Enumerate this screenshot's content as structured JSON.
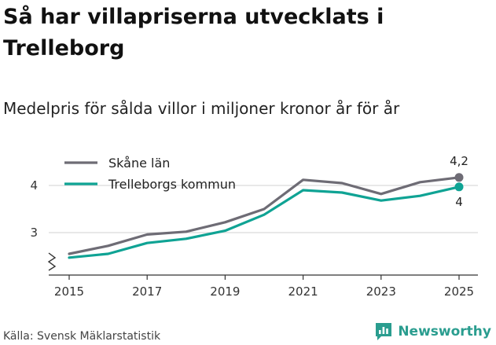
{
  "header": {
    "title": "Så har villapriserna utvecklats i Trelleborg",
    "subtitle": "Medelpris för sålda villor i miljoner kronor år för år"
  },
  "footer": {
    "source": "Källa: Svensk Mäklarstatistik",
    "brand": "Newsworthy",
    "brand_icon": "bar-chart-icon"
  },
  "colors": {
    "skane": "#6e6c75",
    "trelleborg": "#0fa394",
    "grid": "#d9d9d9",
    "axis": "#333333"
  },
  "chart_data": {
    "type": "line",
    "title": "Så har villapriserna utvecklats i Trelleborg",
    "subtitle": "Medelpris för sålda villor i miljoner kronor år för år",
    "xlabel": "",
    "ylabel": "",
    "x": [
      2015,
      2016,
      2017,
      2018,
      2019,
      2020,
      2021,
      2022,
      2023,
      2024,
      2025
    ],
    "x_ticks": [
      2015,
      2017,
      2019,
      2021,
      2023,
      2025
    ],
    "x_tick_labels": [
      "2015",
      "2017",
      "2019",
      "2021",
      "2023",
      "2025"
    ],
    "y_ticks": [
      3,
      4
    ],
    "y_tick_labels": [
      "3",
      "4"
    ],
    "ylim": [
      2.1,
      4.6
    ],
    "y_axis_break": true,
    "grid": true,
    "legend_position": "top-left",
    "series": [
      {
        "name": "Skåne län",
        "color": "#6e6c75",
        "values": [
          2.55,
          2.72,
          2.96,
          3.02,
          3.22,
          3.5,
          4.12,
          4.05,
          3.82,
          4.07,
          4.17
        ],
        "end_label": "4,2"
      },
      {
        "name": "Trelleborgs kommun",
        "color": "#0fa394",
        "values": [
          2.47,
          2.55,
          2.78,
          2.87,
          3.04,
          3.38,
          3.9,
          3.85,
          3.68,
          3.78,
          3.97
        ],
        "end_label": "4"
      }
    ]
  }
}
